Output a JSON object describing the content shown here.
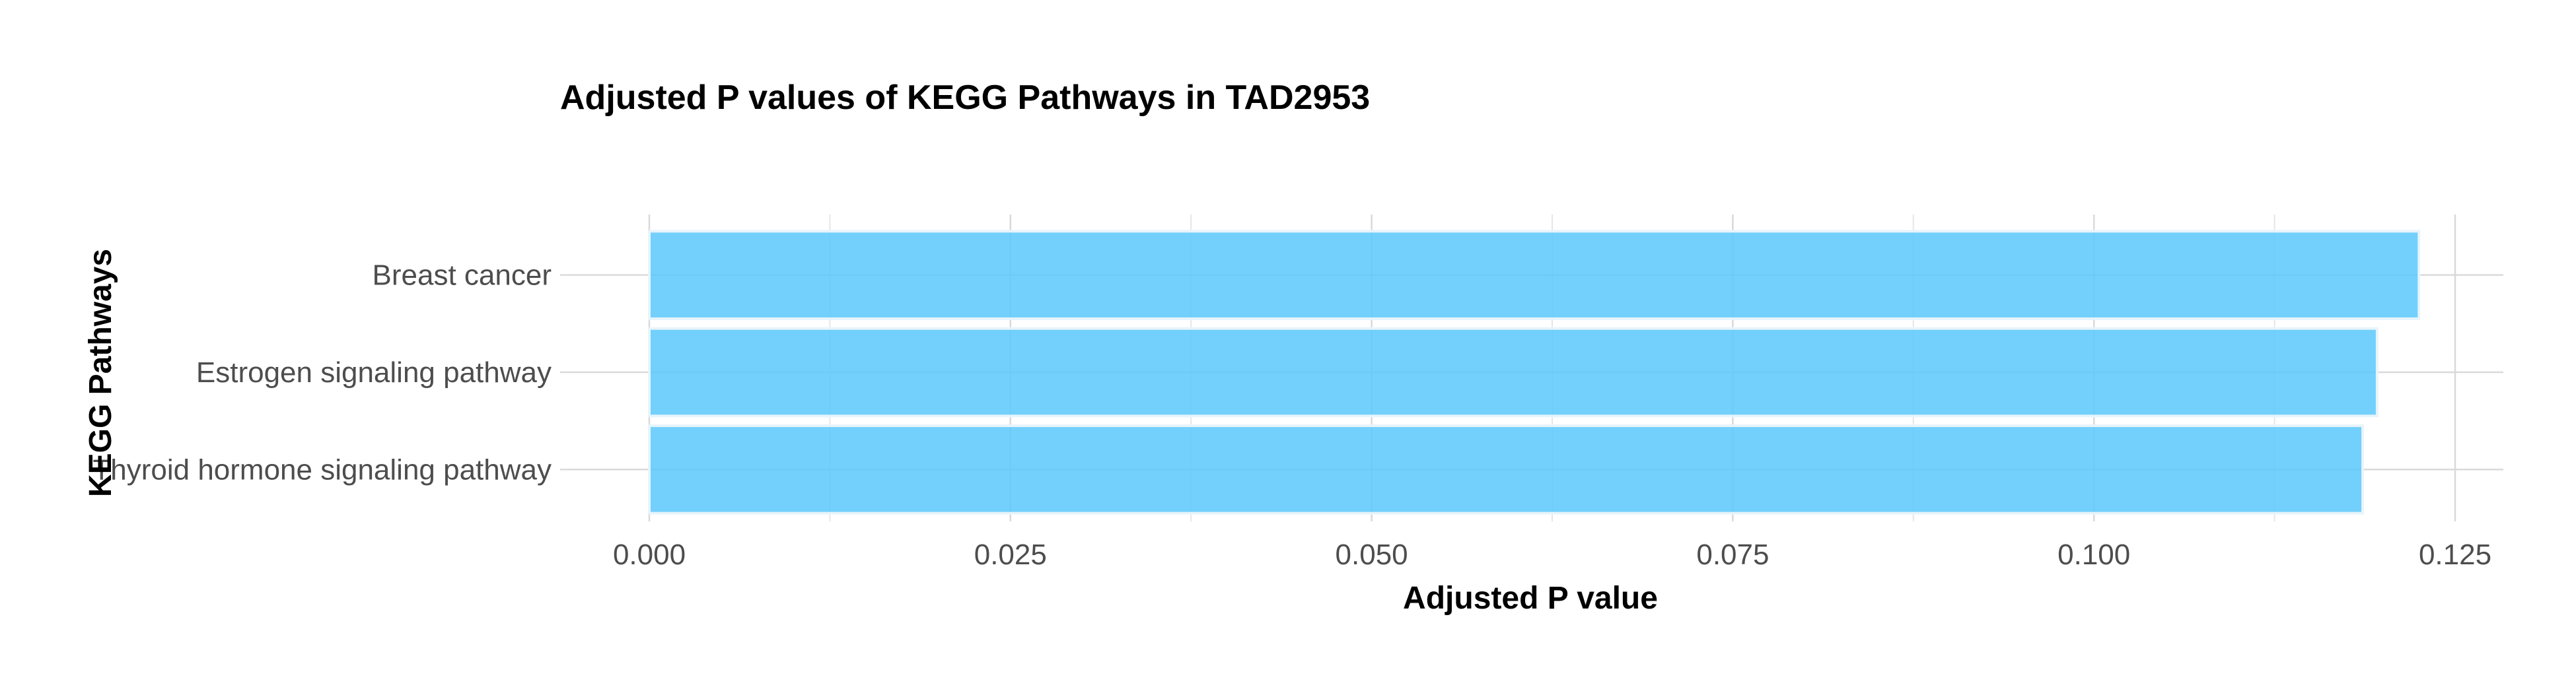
{
  "chart_data": {
    "type": "bar",
    "orientation": "horizontal",
    "title": "Adjusted P values of KEGG Pathways in TAD2953",
    "xlabel": "Adjusted P value",
    "ylabel": "KEGG Pathways",
    "categories": [
      "Breast cancer",
      "Estrogen signaling pathway",
      "Thyroid hormone signaling pathway"
    ],
    "values": [
      0.1225,
      0.1196,
      0.1186
    ],
    "xlim": [
      0,
      0.125
    ],
    "xticks": [
      "0.000",
      "0.025",
      "0.050",
      "0.075",
      "0.100",
      "0.125"
    ],
    "xtick_values": [
      0,
      0.025,
      0.05,
      0.075,
      0.1,
      0.125
    ],
    "grid": true,
    "legend": "none",
    "bar_color": "#5bc8fb"
  }
}
